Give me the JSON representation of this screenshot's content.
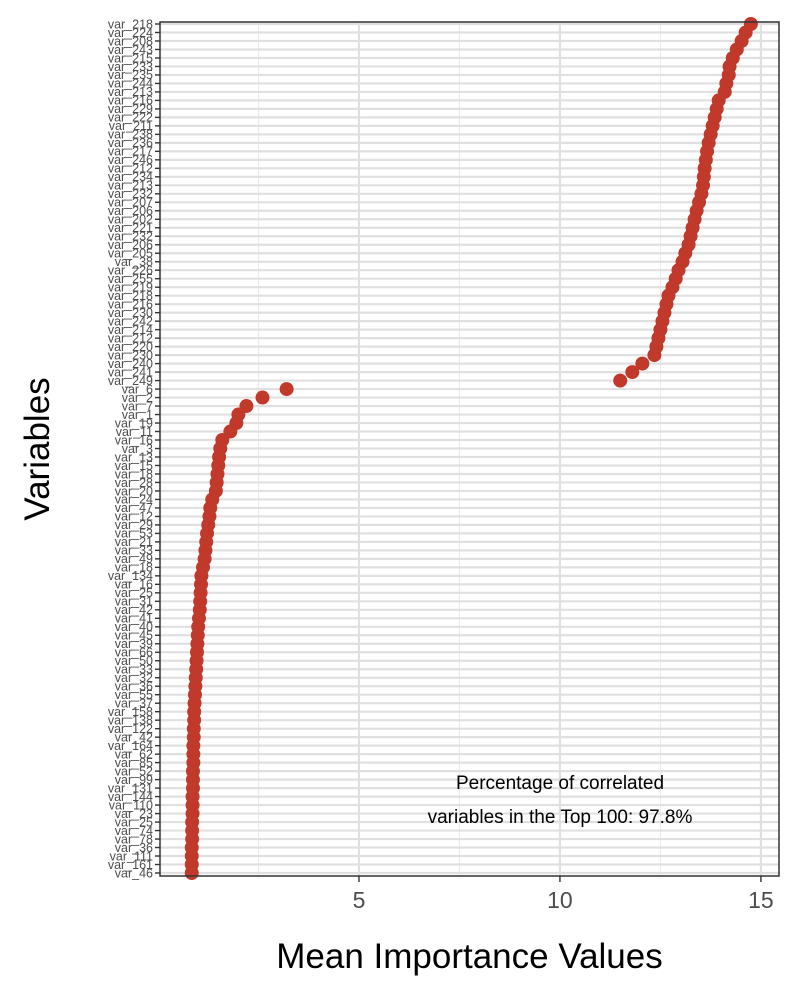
{
  "chart_data": {
    "type": "scatter",
    "xlabel": "Mean Importance Values",
    "ylabel": "Variables",
    "xlim": [
      0.05,
      15.45
    ],
    "xticks": [
      5,
      10,
      15
    ],
    "grid": true,
    "legend": "none",
    "annotation": [
      "Percentage of correlated",
      "variables in the Top 100: 97.8%"
    ],
    "colors": {
      "points": "#c0392b",
      "panel_border": "#333333",
      "grid_minor": "#ebebeb",
      "grid_major": "#e0e0e0"
    },
    "categories": [
      "var_218",
      "var_224",
      "var_208",
      "var_243",
      "var_215",
      "var_233",
      "var_235",
      "var_244",
      "var_213",
      "var_216",
      "var_229",
      "var_222",
      "var_211",
      "var_238",
      "var_236",
      "var_217",
      "var_246",
      "var_212",
      "var_234",
      "var_213",
      "var_232",
      "var_207",
      "var_206",
      "var_202",
      "var_221",
      "var_232",
      "var_206",
      "var_205",
      "var_38",
      "var_226",
      "var_255",
      "var_219",
      "var_218",
      "var_216",
      "var_230",
      "var_242",
      "var_214",
      "var_212",
      "var_220",
      "var_230",
      "var_240",
      "var_241",
      "var_249",
      "var_6",
      "var_2",
      "var_7",
      "var_1",
      "var_19",
      "var_11",
      "var_16",
      "var_3",
      "var_13",
      "var_15",
      "var_18",
      "var_28",
      "var_20",
      "var_24",
      "var_47",
      "var_12",
      "var_29",
      "var_53",
      "var_21",
      "var_33",
      "var_49",
      "var_18",
      "var_134",
      "var_16",
      "var_25",
      "var_31",
      "var_42",
      "var_41",
      "var_40",
      "var_45",
      "var_39",
      "var_66",
      "var_50",
      "var_33",
      "var_32",
      "var_36",
      "var_55",
      "var_37",
      "var_158",
      "var_138",
      "var_122",
      "var_42",
      "var_164",
      "var_62",
      "var_85",
      "var_52",
      "var_99",
      "var_131",
      "var_144",
      "var_110",
      "var_23",
      "var_25",
      "var_74",
      "var_78",
      "var_36",
      "var_111",
      "var_161",
      "var_46"
    ],
    "values": [
      14.75,
      14.62,
      14.52,
      14.4,
      14.3,
      14.22,
      14.2,
      14.14,
      14.1,
      13.95,
      13.9,
      13.85,
      13.8,
      13.75,
      13.7,
      13.66,
      13.63,
      13.6,
      13.58,
      13.56,
      13.52,
      13.46,
      13.4,
      13.35,
      13.3,
      13.25,
      13.2,
      13.12,
      13.05,
      12.95,
      12.88,
      12.8,
      12.7,
      12.65,
      12.6,
      12.55,
      12.5,
      12.45,
      12.4,
      12.35,
      12.05,
      11.8,
      11.5,
      3.2,
      2.6,
      2.2,
      2.0,
      1.95,
      1.8,
      1.6,
      1.55,
      1.52,
      1.5,
      1.48,
      1.46,
      1.44,
      1.35,
      1.3,
      1.28,
      1.25,
      1.22,
      1.2,
      1.18,
      1.16,
      1.12,
      1.08,
      1.07,
      1.06,
      1.05,
      1.04,
      1.02,
      1.0,
      0.99,
      0.98,
      0.97,
      0.96,
      0.95,
      0.94,
      0.93,
      0.92,
      0.91,
      0.9,
      0.9,
      0.89,
      0.89,
      0.88,
      0.88,
      0.88,
      0.87,
      0.87,
      0.87,
      0.86,
      0.86,
      0.86,
      0.85,
      0.85,
      0.85,
      0.84,
      0.84,
      0.84,
      0.84
    ]
  }
}
